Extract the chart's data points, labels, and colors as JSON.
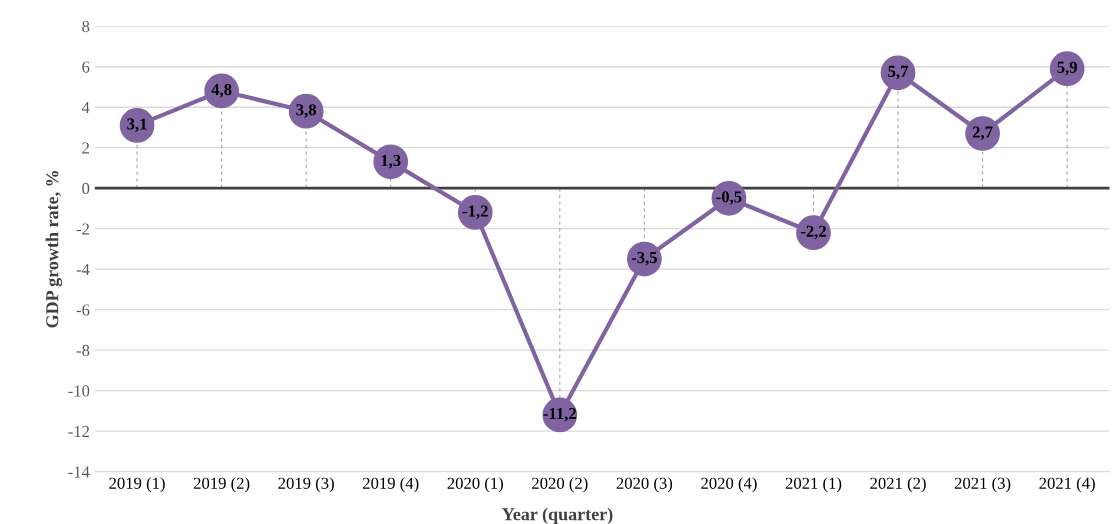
{
  "chart_data": {
    "type": "line",
    "ylabel": "GDP growth rate, %",
    "xlabel": "Year (quarter)",
    "categories": [
      "2019 (1)",
      "2019 (2)",
      "2019 (3)",
      "2019 (4)",
      "2020 (1)",
      "2020 (2)",
      "2020 (3)",
      "2020 (4)",
      "2021 (1)",
      "2021 (2)",
      "2021 (3)",
      "2021 (4)"
    ],
    "series": [
      {
        "color": "#8064a2",
        "values": [
          3.1,
          4.8,
          3.8,
          1.3,
          -1.2,
          -11.2,
          -3.5,
          -0.5,
          -2.2,
          5.7,
          2.7,
          5.9
        ],
        "value_labels": [
          "3,1",
          "4,8",
          "3,8",
          "1,3",
          "-1,2",
          "-11,2",
          "-3,5",
          "-0,5",
          "-2,2",
          "5,7",
          "2,7",
          "5,9"
        ]
      }
    ],
    "ylim": [
      -14,
      8
    ],
    "yticks": [
      -14,
      -12,
      -10,
      -8,
      -6,
      -4,
      -2,
      0,
      2,
      4,
      6,
      8
    ],
    "ref_lines": [
      {
        "axis": "y",
        "value": 0,
        "color": "#404040"
      }
    ],
    "grid": "y",
    "marker": "circle",
    "line_style": "solid",
    "legend": false
  }
}
